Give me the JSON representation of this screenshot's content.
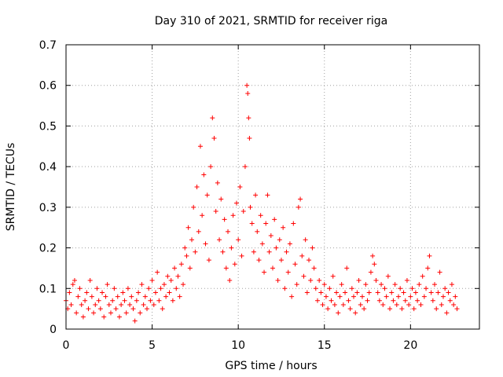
{
  "chart_data": {
    "type": "scatter",
    "title": "Day 310 of 2021, SRMTID for receiver riga",
    "xlabel": "GPS time / hours",
    "ylabel": "SRMTID / TECUs",
    "xlim": [
      0,
      24
    ],
    "ylim": [
      0,
      0.7
    ],
    "xticks": [
      0,
      5,
      10,
      15,
      20
    ],
    "yticks": [
      0,
      0.1,
      0.2,
      0.3,
      0.4,
      0.5,
      0.6,
      0.7
    ],
    "xtick_labels": [
      "0",
      "5",
      "10",
      "15",
      "20"
    ],
    "ytick_labels": [
      "0",
      "0.1",
      "0.2",
      "0.3",
      "0.4",
      "0.5",
      "0.6",
      "0.7"
    ],
    "grid": true,
    "legend": "none",
    "marker": "+",
    "color": "#ff0000",
    "series": [
      {
        "name": "SRMTID",
        "points": [
          [
            0.0,
            0.07
          ],
          [
            0.1,
            0.05
          ],
          [
            0.2,
            0.09
          ],
          [
            0.3,
            0.06
          ],
          [
            0.4,
            0.11
          ],
          [
            0.5,
            0.12
          ],
          [
            0.6,
            0.04
          ],
          [
            0.7,
            0.08
          ],
          [
            0.8,
            0.1
          ],
          [
            0.9,
            0.06
          ],
          [
            1.0,
            0.03
          ],
          [
            1.1,
            0.07
          ],
          [
            1.2,
            0.09
          ],
          [
            1.3,
            0.05
          ],
          [
            1.4,
            0.12
          ],
          [
            1.5,
            0.08
          ],
          [
            1.6,
            0.04
          ],
          [
            1.7,
            0.06
          ],
          [
            1.8,
            0.1
          ],
          [
            1.9,
            0.07
          ],
          [
            2.0,
            0.05
          ],
          [
            2.1,
            0.09
          ],
          [
            2.2,
            0.03
          ],
          [
            2.3,
            0.08
          ],
          [
            2.4,
            0.11
          ],
          [
            2.5,
            0.06
          ],
          [
            2.6,
            0.04
          ],
          [
            2.7,
            0.07
          ],
          [
            2.8,
            0.1
          ],
          [
            2.9,
            0.05
          ],
          [
            3.0,
            0.08
          ],
          [
            3.1,
            0.03
          ],
          [
            3.2,
            0.06
          ],
          [
            3.3,
            0.09
          ],
          [
            3.4,
            0.07
          ],
          [
            3.5,
            0.04
          ],
          [
            3.6,
            0.1
          ],
          [
            3.7,
            0.06
          ],
          [
            3.8,
            0.08
          ],
          [
            3.9,
            0.05
          ],
          [
            4.0,
            0.02
          ],
          [
            4.1,
            0.07
          ],
          [
            4.2,
            0.09
          ],
          [
            4.3,
            0.04
          ],
          [
            4.4,
            0.11
          ],
          [
            4.5,
            0.06
          ],
          [
            4.6,
            0.08
          ],
          [
            4.7,
            0.05
          ],
          [
            4.8,
            0.1
          ],
          [
            4.9,
            0.07
          ],
          [
            5.0,
            0.12
          ],
          [
            5.1,
            0.06
          ],
          [
            5.2,
            0.09
          ],
          [
            5.3,
            0.14
          ],
          [
            5.4,
            0.07
          ],
          [
            5.5,
            0.1
          ],
          [
            5.6,
            0.05
          ],
          [
            5.7,
            0.11
          ],
          [
            5.8,
            0.08
          ],
          [
            5.9,
            0.13
          ],
          [
            6.0,
            0.09
          ],
          [
            6.1,
            0.12
          ],
          [
            6.2,
            0.07
          ],
          [
            6.3,
            0.15
          ],
          [
            6.4,
            0.1
          ],
          [
            6.5,
            0.13
          ],
          [
            6.6,
            0.08
          ],
          [
            6.7,
            0.16
          ],
          [
            6.8,
            0.11
          ],
          [
            6.9,
            0.2
          ],
          [
            7.0,
            0.18
          ],
          [
            7.1,
            0.25
          ],
          [
            7.2,
            0.15
          ],
          [
            7.3,
            0.22
          ],
          [
            7.4,
            0.3
          ],
          [
            7.5,
            0.19
          ],
          [
            7.6,
            0.35
          ],
          [
            7.7,
            0.24
          ],
          [
            7.8,
            0.45
          ],
          [
            7.9,
            0.28
          ],
          [
            8.0,
            0.38
          ],
          [
            8.1,
            0.21
          ],
          [
            8.2,
            0.33
          ],
          [
            8.3,
            0.17
          ],
          [
            8.4,
            0.4
          ],
          [
            8.5,
            0.52
          ],
          [
            8.6,
            0.47
          ],
          [
            8.7,
            0.29
          ],
          [
            8.8,
            0.36
          ],
          [
            8.9,
            0.22
          ],
          [
            9.0,
            0.32
          ],
          [
            9.1,
            0.19
          ],
          [
            9.2,
            0.27
          ],
          [
            9.3,
            0.15
          ],
          [
            9.4,
            0.24
          ],
          [
            9.5,
            0.12
          ],
          [
            9.6,
            0.2
          ],
          [
            9.7,
            0.28
          ],
          [
            9.8,
            0.16
          ],
          [
            9.9,
            0.31
          ],
          [
            10.0,
            0.22
          ],
          [
            10.1,
            0.35
          ],
          [
            10.2,
            0.18
          ],
          [
            10.3,
            0.29
          ],
          [
            10.4,
            0.4
          ],
          [
            10.5,
            0.6
          ],
          [
            10.55,
            0.58
          ],
          [
            10.6,
            0.52
          ],
          [
            10.65,
            0.47
          ],
          [
            10.7,
            0.3
          ],
          [
            10.8,
            0.26
          ],
          [
            10.9,
            0.19
          ],
          [
            11.0,
            0.33
          ],
          [
            11.1,
            0.24
          ],
          [
            11.2,
            0.17
          ],
          [
            11.3,
            0.28
          ],
          [
            11.4,
            0.21
          ],
          [
            11.5,
            0.14
          ],
          [
            11.6,
            0.26
          ],
          [
            11.7,
            0.33
          ],
          [
            11.8,
            0.19
          ],
          [
            11.9,
            0.23
          ],
          [
            12.0,
            0.15
          ],
          [
            12.1,
            0.27
          ],
          [
            12.2,
            0.2
          ],
          [
            12.3,
            0.12
          ],
          [
            12.4,
            0.22
          ],
          [
            12.5,
            0.17
          ],
          [
            12.6,
            0.25
          ],
          [
            12.7,
            0.1
          ],
          [
            12.8,
            0.19
          ],
          [
            12.9,
            0.14
          ],
          [
            13.0,
            0.21
          ],
          [
            13.1,
            0.08
          ],
          [
            13.2,
            0.26
          ],
          [
            13.3,
            0.16
          ],
          [
            13.4,
            0.11
          ],
          [
            13.5,
            0.3
          ],
          [
            13.6,
            0.32
          ],
          [
            13.7,
            0.18
          ],
          [
            13.8,
            0.13
          ],
          [
            13.9,
            0.22
          ],
          [
            14.0,
            0.09
          ],
          [
            14.1,
            0.17
          ],
          [
            14.2,
            0.12
          ],
          [
            14.3,
            0.2
          ],
          [
            14.4,
            0.15
          ],
          [
            14.5,
            0.1
          ],
          [
            14.6,
            0.07
          ],
          [
            14.7,
            0.12
          ],
          [
            14.8,
            0.09
          ],
          [
            14.9,
            0.06
          ],
          [
            15.0,
            0.11
          ],
          [
            15.1,
            0.08
          ],
          [
            15.2,
            0.05
          ],
          [
            15.3,
            0.1
          ],
          [
            15.4,
            0.07
          ],
          [
            15.5,
            0.13
          ],
          [
            15.6,
            0.06
          ],
          [
            15.7,
            0.09
          ],
          [
            15.8,
            0.04
          ],
          [
            15.9,
            0.08
          ],
          [
            16.0,
            0.11
          ],
          [
            16.1,
            0.06
          ],
          [
            16.2,
            0.09
          ],
          [
            16.3,
            0.15
          ],
          [
            16.4,
            0.07
          ],
          [
            16.5,
            0.05
          ],
          [
            16.6,
            0.1
          ],
          [
            16.7,
            0.08
          ],
          [
            16.8,
            0.04
          ],
          [
            16.9,
            0.09
          ],
          [
            17.0,
            0.12
          ],
          [
            17.1,
            0.06
          ],
          [
            17.2,
            0.08
          ],
          [
            17.3,
            0.05
          ],
          [
            17.4,
            0.11
          ],
          [
            17.5,
            0.07
          ],
          [
            17.6,
            0.09
          ],
          [
            17.7,
            0.14
          ],
          [
            17.8,
            0.18
          ],
          [
            17.9,
            0.16
          ],
          [
            18.0,
            0.12
          ],
          [
            18.1,
            0.09
          ],
          [
            18.2,
            0.07
          ],
          [
            18.3,
            0.11
          ],
          [
            18.4,
            0.06
          ],
          [
            18.5,
            0.1
          ],
          [
            18.6,
            0.08
          ],
          [
            18.7,
            0.13
          ],
          [
            18.8,
            0.05
          ],
          [
            18.9,
            0.09
          ],
          [
            19.0,
            0.07
          ],
          [
            19.1,
            0.11
          ],
          [
            19.2,
            0.06
          ],
          [
            19.3,
            0.08
          ],
          [
            19.4,
            0.1
          ],
          [
            19.5,
            0.05
          ],
          [
            19.6,
            0.09
          ],
          [
            19.7,
            0.07
          ],
          [
            19.8,
            0.12
          ],
          [
            19.9,
            0.06
          ],
          [
            20.0,
            0.08
          ],
          [
            20.1,
            0.1
          ],
          [
            20.2,
            0.05
          ],
          [
            20.3,
            0.09
          ],
          [
            20.4,
            0.07
          ],
          [
            20.5,
            0.11
          ],
          [
            20.6,
            0.06
          ],
          [
            20.7,
            0.13
          ],
          [
            20.8,
            0.08
          ],
          [
            20.9,
            0.1
          ],
          [
            21.0,
            0.15
          ],
          [
            21.1,
            0.18
          ],
          [
            21.2,
            0.09
          ],
          [
            21.3,
            0.07
          ],
          [
            21.4,
            0.11
          ],
          [
            21.5,
            0.05
          ],
          [
            21.6,
            0.09
          ],
          [
            21.7,
            0.14
          ],
          [
            21.8,
            0.06
          ],
          [
            21.9,
            0.08
          ],
          [
            22.0,
            0.1
          ],
          [
            22.1,
            0.04
          ],
          [
            22.2,
            0.09
          ],
          [
            22.3,
            0.07
          ],
          [
            22.4,
            0.11
          ],
          [
            22.5,
            0.06
          ],
          [
            22.6,
            0.08
          ],
          [
            22.7,
            0.05
          ]
        ]
      }
    ]
  }
}
